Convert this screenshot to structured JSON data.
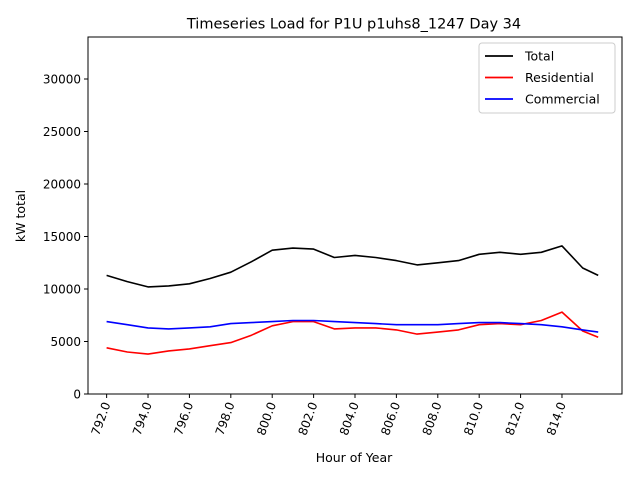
{
  "chart_data": {
    "type": "line",
    "title": "Timeseries Load for P1U p1uhs8_1247  Day 34",
    "xlabel": "Hour of Year",
    "ylabel": "kW total",
    "xlim": [
      791.1,
      816.9
    ],
    "ylim": [
      0,
      34000
    ],
    "x_ticks": [
      792,
      794,
      796,
      798,
      800,
      802,
      804,
      806,
      808,
      810,
      812,
      814
    ],
    "x_tick_labels": [
      "792.0",
      "794.0",
      "796.0",
      "798.0",
      "800.0",
      "802.0",
      "804.0",
      "806.0",
      "808.0",
      "810.0",
      "812.0",
      "814.0"
    ],
    "y_ticks": [
      0,
      5000,
      10000,
      15000,
      20000,
      25000,
      30000
    ],
    "y_tick_labels": [
      "0",
      "5000",
      "10000",
      "15000",
      "20000",
      "25000",
      "30000"
    ],
    "legend_position": "upper right",
    "x": [
      792,
      793,
      794,
      795,
      796,
      797,
      798,
      799,
      800,
      801,
      802,
      803,
      804,
      805,
      806,
      807,
      808,
      809,
      810,
      811,
      812,
      813,
      814,
      815,
      815.75
    ],
    "series": [
      {
        "name": "Total",
        "color": "#000000",
        "values": [
          11300,
          10700,
          10200,
          10300,
          10500,
          11000,
          11600,
          12600,
          13700,
          13900,
          13800,
          13000,
          13200,
          13000,
          12700,
          12300,
          12500,
          12700,
          13300,
          13500,
          13300,
          13500,
          14100,
          12000,
          11300
        ]
      },
      {
        "name": "Residential",
        "color": "#ff0000",
        "values": [
          4400,
          4000,
          3800,
          4100,
          4300,
          4600,
          4900,
          5600,
          6500,
          6900,
          6900,
          6200,
          6300,
          6300,
          6100,
          5700,
          5900,
          6100,
          6600,
          6700,
          6600,
          7000,
          7800,
          6000,
          5400
        ]
      },
      {
        "name": "Commercial",
        "color": "#0000ff",
        "values": [
          6900,
          6600,
          6300,
          6200,
          6300,
          6400,
          6700,
          6800,
          6900,
          7000,
          7000,
          6900,
          6800,
          6700,
          6600,
          6600,
          6600,
          6700,
          6800,
          6800,
          6700,
          6600,
          6400,
          6100,
          5900
        ]
      }
    ]
  }
}
